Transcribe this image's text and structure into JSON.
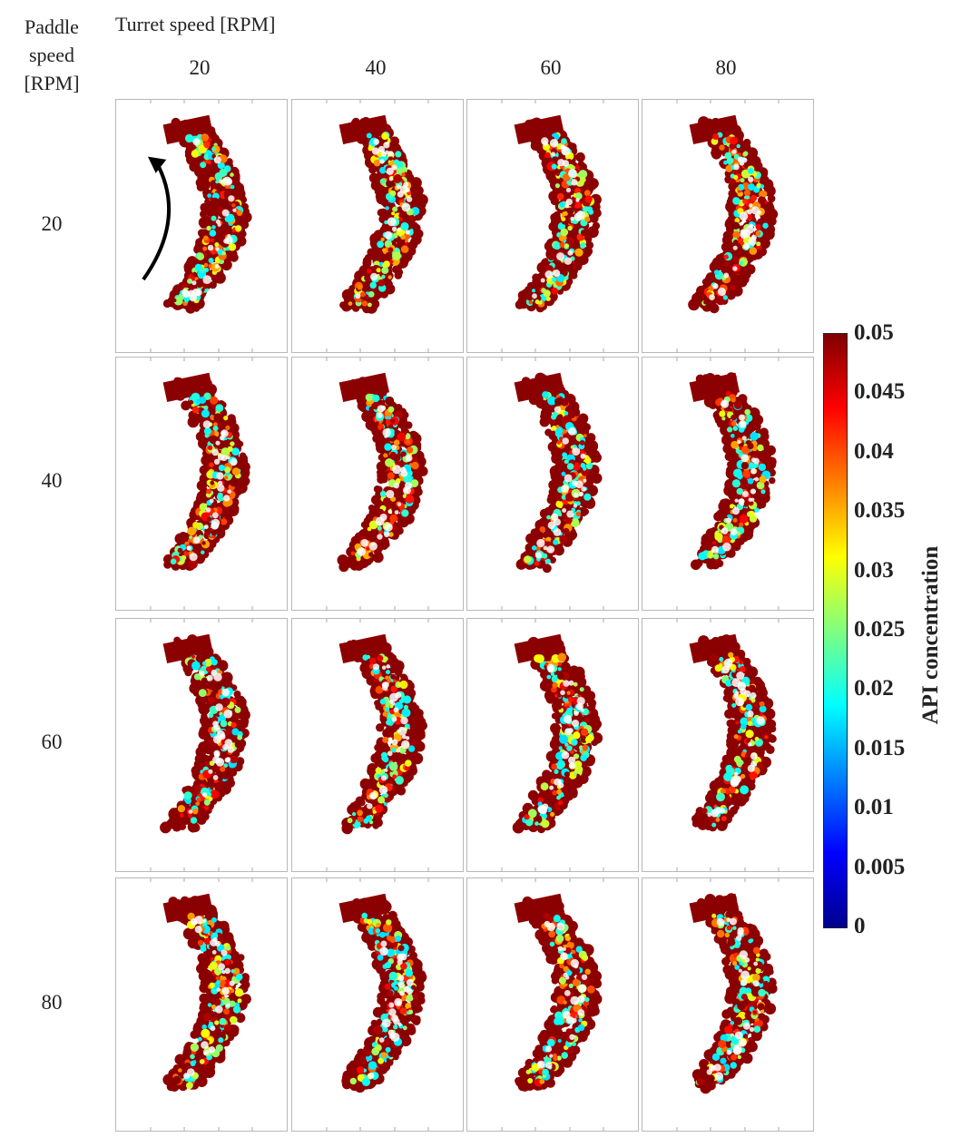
{
  "row_axis_title": "Paddle speed [RPM]",
  "col_axis_title": "Turret speed [RPM]",
  "turret_speeds": [
    "20",
    "40",
    "60",
    "80"
  ],
  "paddle_speeds": [
    "20",
    "40",
    "60",
    "80"
  ],
  "colorbar": {
    "label": "API concentration",
    "ticks": [
      "0.05",
      "0.045",
      "0.04",
      "0.035",
      "0.03",
      "0.025",
      "0.02",
      "0.015",
      "0.01",
      "0.005",
      "0"
    ],
    "range": [
      0,
      0.05
    ],
    "colormap": "jet"
  },
  "rotation_arrow_icon": "curved-arrow-icon",
  "colors": {
    "high": "#800000",
    "mid": "#00e5ff",
    "text": "#222222"
  }
}
